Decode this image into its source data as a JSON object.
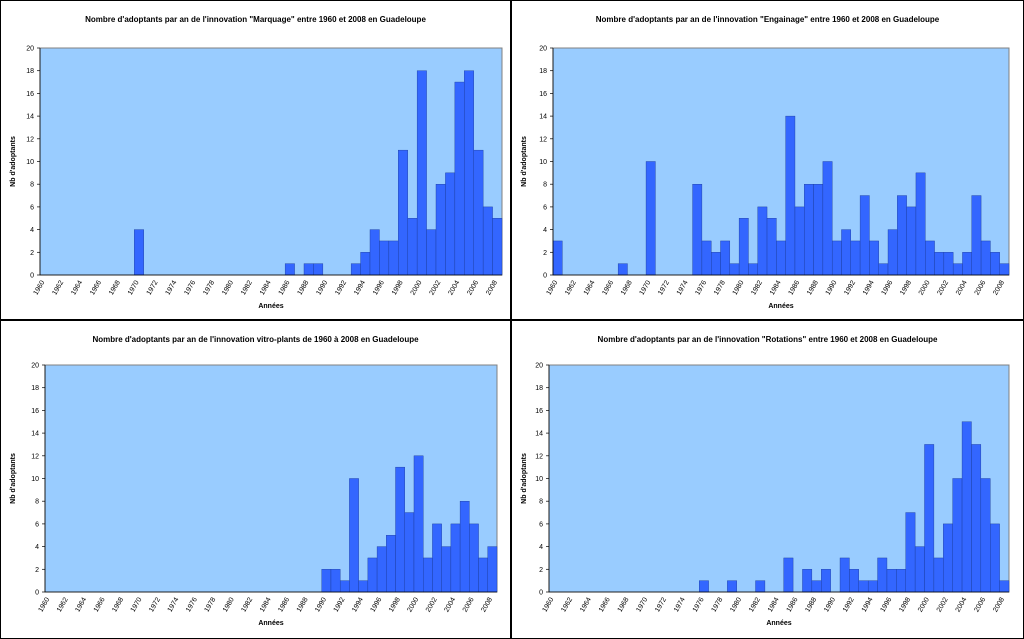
{
  "chart_data": [
    {
      "type": "bar",
      "title": "Nombre d'adoptants par an de l'innovation \"Marquage\" entre 1960 et 2008 en Guadeloupe",
      "x_label": "Années",
      "y_label": "Nb d'adoptants",
      "color": "#3366ff",
      "background": "#99ccff",
      "categories": [
        "1960",
        null,
        "1962",
        null,
        "1964",
        null,
        "1966",
        null,
        "1968",
        null,
        "1970",
        null,
        "1972",
        null,
        "1974",
        null,
        "1976",
        null,
        "1978",
        null,
        "1980",
        null,
        "1982",
        null,
        "1984",
        null,
        "1986",
        null,
        "1988",
        null,
        "1990",
        null,
        "1992",
        null,
        "1994",
        null,
        "1996",
        null,
        "1998",
        null,
        "2000",
        null,
        "2002",
        null,
        "2004",
        null,
        "2006",
        null,
        "2008"
      ],
      "values": [
        0,
        0,
        0,
        0,
        0,
        0,
        0,
        0,
        0,
        0,
        4,
        0,
        0,
        0,
        0,
        0,
        0,
        0,
        0,
        0,
        0,
        0,
        0,
        0,
        0,
        0,
        1,
        0,
        1,
        1,
        0,
        0,
        0,
        1,
        2,
        4,
        3,
        3,
        11,
        5,
        18,
        4,
        8,
        9,
        17,
        18,
        11,
        6,
        5
      ],
      "ylim": [
        0,
        20
      ],
      "yticks": [
        0,
        2,
        4,
        6,
        8,
        10,
        12,
        14,
        16,
        18,
        20
      ]
    },
    {
      "type": "bar",
      "title": "Nombre d'adoptants par an de l'innovation \"Engainage\" entre 1960 et 2008 en Guadeloupe",
      "x_label": "Années",
      "y_label": "Nb d'adoptants",
      "color": "#3366ff",
      "background": "#99ccff",
      "categories": [
        "1960",
        null,
        "1962",
        null,
        "1964",
        null,
        "1966",
        null,
        "1968",
        null,
        "1970",
        null,
        "1972",
        null,
        "1974",
        null,
        "1976",
        null,
        "1978",
        null,
        "1980",
        null,
        "1982",
        null,
        "1984",
        null,
        "1986",
        null,
        "1988",
        null,
        "1990",
        null,
        "1992",
        null,
        "1994",
        null,
        "1996",
        null,
        "1998",
        null,
        "2000",
        null,
        "2002",
        null,
        "2004",
        null,
        "2006",
        null,
        "2008"
      ],
      "values": [
        3,
        0,
        0,
        0,
        0,
        0,
        0,
        1,
        0,
        0,
        10,
        0,
        0,
        0,
        0,
        8,
        3,
        2,
        3,
        1,
        5,
        1,
        6,
        5,
        3,
        14,
        6,
        8,
        8,
        10,
        3,
        4,
        3,
        7,
        3,
        1,
        4,
        7,
        6,
        9,
        3,
        2,
        2,
        1,
        2,
        7,
        3,
        2,
        1
      ],
      "ylim": [
        0,
        20
      ],
      "yticks": [
        0,
        2,
        4,
        6,
        8,
        10,
        12,
        14,
        16,
        18,
        20
      ]
    },
    {
      "type": "bar",
      "title": "Nombre d'adoptants par an de l'innovation vitro-plants de 1960 à 2008 en Guadeloupe",
      "x_label": "Années",
      "y_label": "Nb d'adoptants",
      "color": "#3366ff",
      "background": "#99ccff",
      "categories": [
        "1960",
        null,
        "1962",
        null,
        "1964",
        null,
        "1966",
        null,
        "1968",
        null,
        "1970",
        null,
        "1972",
        null,
        "1974",
        null,
        "1976",
        null,
        "1978",
        null,
        "1980",
        null,
        "1982",
        null,
        "1984",
        null,
        "1986",
        null,
        "1988",
        null,
        "1990",
        null,
        "1992",
        null,
        "1994",
        null,
        "1996",
        null,
        "1998",
        null,
        "2000",
        null,
        "2002",
        null,
        "2004",
        null,
        "2006",
        null,
        "2008"
      ],
      "values": [
        0,
        0,
        0,
        0,
        0,
        0,
        0,
        0,
        0,
        0,
        0,
        0,
        0,
        0,
        0,
        0,
        0,
        0,
        0,
        0,
        0,
        0,
        0,
        0,
        0,
        0,
        0,
        0,
        0,
        0,
        2,
        2,
        1,
        10,
        1,
        3,
        4,
        5,
        11,
        7,
        12,
        3,
        6,
        4,
        6,
        8,
        6,
        3,
        4
      ],
      "ylim": [
        0,
        20
      ],
      "yticks": [
        0,
        2,
        4,
        6,
        8,
        10,
        12,
        14,
        16,
        18,
        20
      ]
    },
    {
      "type": "bar",
      "title": "Nombre d'adoptants par an de l'innovation \"Rotations\" entre 1960 et 2008 en Guadeloupe",
      "x_label": "Années",
      "y_label": "Nb d'adoptants",
      "color": "#3366ff",
      "background": "#99ccff",
      "categories": [
        "1960",
        null,
        "1962",
        null,
        "1964",
        null,
        "1966",
        null,
        "1968",
        null,
        "1970",
        null,
        "1972",
        null,
        "1974",
        null,
        "1976",
        null,
        "1978",
        null,
        "1980",
        null,
        "1982",
        null,
        "1984",
        null,
        "1986",
        null,
        "1988",
        null,
        "1990",
        null,
        "1992",
        null,
        "1994",
        null,
        "1996",
        null,
        "1998",
        null,
        "2000",
        null,
        "2002",
        null,
        "2004",
        null,
        "2006",
        null,
        "2008"
      ],
      "values": [
        0,
        0,
        0,
        0,
        0,
        0,
        0,
        0,
        0,
        0,
        0,
        0,
        0,
        0,
        0,
        0,
        1,
        0,
        0,
        1,
        0,
        0,
        1,
        0,
        0,
        3,
        0,
        2,
        1,
        2,
        0,
        3,
        2,
        1,
        1,
        3,
        2,
        2,
        7,
        4,
        13,
        3,
        6,
        10,
        15,
        13,
        10,
        6,
        1
      ],
      "ylim": [
        0,
        20
      ],
      "yticks": [
        0,
        2,
        4,
        6,
        8,
        10,
        12,
        14,
        16,
        18,
        20
      ]
    }
  ]
}
